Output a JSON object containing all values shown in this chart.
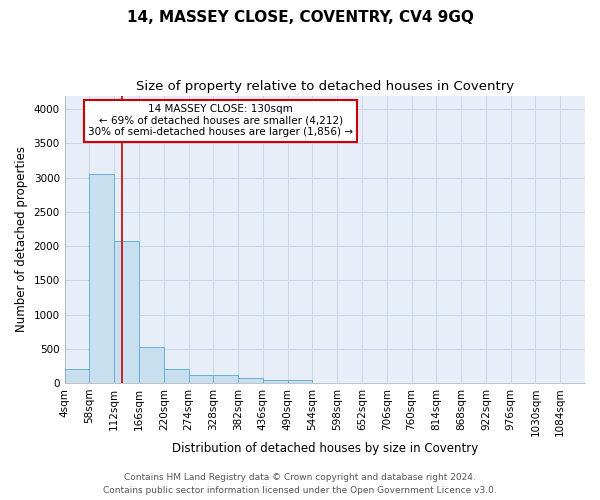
{
  "title1": "14, MASSEY CLOSE, COVENTRY, CV4 9GQ",
  "title2": "Size of property relative to detached houses in Coventry",
  "xlabel": "Distribution of detached houses by size in Coventry",
  "ylabel": "Number of detached properties",
  "bins": [
    "4sqm",
    "58sqm",
    "112sqm",
    "166sqm",
    "220sqm",
    "274sqm",
    "328sqm",
    "382sqm",
    "436sqm",
    "490sqm",
    "544sqm",
    "598sqm",
    "652sqm",
    "706sqm",
    "760sqm",
    "814sqm",
    "868sqm",
    "922sqm",
    "976sqm",
    "1030sqm",
    "1084sqm"
  ],
  "bin_edges": [
    4,
    58,
    112,
    166,
    220,
    274,
    328,
    382,
    436,
    490,
    544,
    598,
    652,
    706,
    760,
    814,
    868,
    922,
    976,
    1030,
    1084
  ],
  "bar_heights": [
    200,
    3050,
    2080,
    520,
    200,
    120,
    110,
    70,
    50,
    45,
    0,
    0,
    0,
    0,
    0,
    0,
    0,
    0,
    0,
    0
  ],
  "bar_color": "#c8dff0",
  "bar_edge_color": "#6aafd6",
  "vline_x": 130,
  "vline_color": "#cc0000",
  "annotation_text_line1": "14 MASSEY CLOSE: 130sqm",
  "annotation_text_line2": "← 69% of detached houses are smaller (4,212)",
  "annotation_text_line3": "30% of semi-detached houses are larger (1,856) →",
  "annotation_box_color": "#cc0000",
  "ylim": [
    0,
    4200
  ],
  "yticks": [
    0,
    500,
    1000,
    1500,
    2000,
    2500,
    3000,
    3500,
    4000
  ],
  "grid_color": "#c8d4e8",
  "background_color": "#e8eef8",
  "footer1": "Contains HM Land Registry data © Crown copyright and database right 2024.",
  "footer2": "Contains public sector information licensed under the Open Government Licence v3.0.",
  "title1_fontsize": 11,
  "title2_fontsize": 9.5,
  "axis_label_fontsize": 8.5,
  "tick_fontsize": 7.5,
  "footer_fontsize": 6.5,
  "annot_fontsize": 7.5
}
